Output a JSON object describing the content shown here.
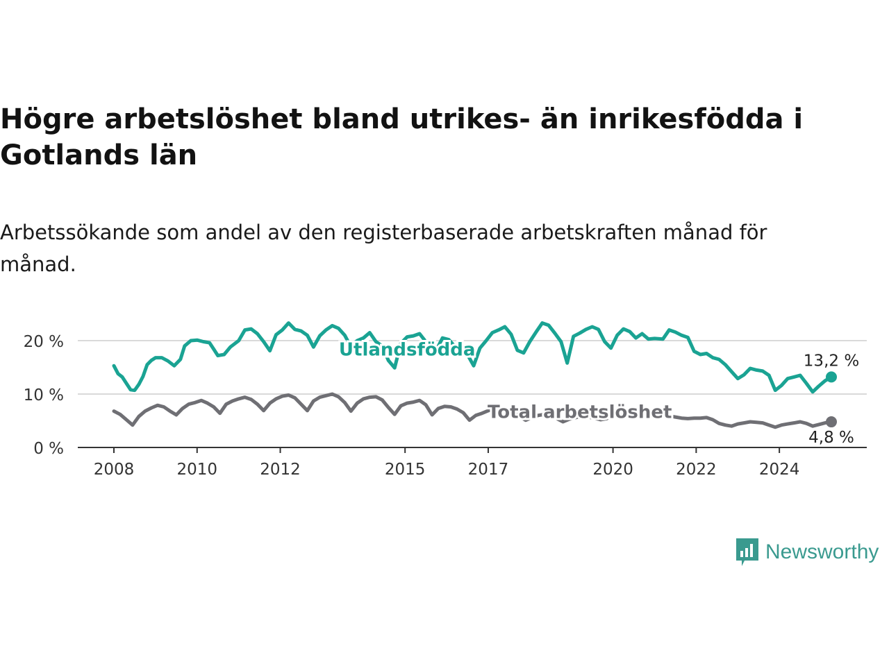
{
  "header": {
    "title": "Högre arbetslöshet bland utrikes- än inrikesfödda i Gotlands län",
    "subtitle": "Arbetssökande som andel av den registerbaserade arbetskraften månad för månad."
  },
  "branding": {
    "logo_text": "Newsworthy",
    "logo_color": "#3a9a8f"
  },
  "chart_data": {
    "type": "line",
    "title": "Högre arbetslöshet bland utrikes- än inrikesfödda i Gotlands län",
    "subtitle": "Arbetssökande som andel av den registerbaserade arbetskraften månad för månad.",
    "xlabel": "",
    "ylabel": "",
    "x_range": [
      2008,
      2025
    ],
    "ylim": [
      0,
      24
    ],
    "y_ticks": [
      0,
      10,
      20
    ],
    "y_tick_labels": [
      "0 %",
      "10 %",
      "20 %"
    ],
    "x_ticks": [
      2008,
      2010,
      2012,
      2015,
      2017,
      2020,
      2022,
      2024
    ],
    "x_tick_labels": [
      "2008",
      "2010",
      "2012",
      "2015",
      "2017",
      "2020",
      "2022",
      "2024"
    ],
    "grid": true,
    "legend": "inline labels",
    "series": [
      {
        "name": "Utlandsfödda",
        "color": "#1aa393",
        "end_label": "13,2 %",
        "points": [
          [
            2008.0,
            15.3
          ],
          [
            2008.1,
            13.8
          ],
          [
            2008.2,
            13.2
          ],
          [
            2008.3,
            12.0
          ],
          [
            2008.4,
            10.8
          ],
          [
            2008.5,
            10.7
          ],
          [
            2008.6,
            11.8
          ],
          [
            2008.7,
            13.3
          ],
          [
            2008.8,
            15.5
          ],
          [
            2008.9,
            16.3
          ],
          [
            2009.0,
            16.8
          ],
          [
            2009.15,
            16.8
          ],
          [
            2009.3,
            16.2
          ],
          [
            2009.45,
            15.3
          ],
          [
            2009.6,
            16.5
          ],
          [
            2009.7,
            19.0
          ],
          [
            2009.85,
            20.0
          ],
          [
            2010.0,
            20.1
          ],
          [
            2010.15,
            19.8
          ],
          [
            2010.3,
            19.6
          ],
          [
            2010.4,
            18.4
          ],
          [
            2010.5,
            17.2
          ],
          [
            2010.65,
            17.4
          ],
          [
            2010.8,
            18.8
          ],
          [
            2011.0,
            20.0
          ],
          [
            2011.15,
            22.0
          ],
          [
            2011.3,
            22.2
          ],
          [
            2011.45,
            21.3
          ],
          [
            2011.6,
            19.8
          ],
          [
            2011.75,
            18.1
          ],
          [
            2011.9,
            21.1
          ],
          [
            2012.05,
            22.0
          ],
          [
            2012.2,
            23.3
          ],
          [
            2012.35,
            22.1
          ],
          [
            2012.5,
            21.8
          ],
          [
            2012.65,
            21.0
          ],
          [
            2012.8,
            18.8
          ],
          [
            2012.95,
            20.9
          ],
          [
            2013.1,
            22.0
          ],
          [
            2013.25,
            22.8
          ],
          [
            2013.4,
            22.3
          ],
          [
            2013.55,
            21.0
          ],
          [
            2013.7,
            18.8
          ],
          [
            2013.85,
            20.0
          ],
          [
            2014.0,
            20.5
          ],
          [
            2014.15,
            21.5
          ],
          [
            2014.3,
            19.8
          ],
          [
            2014.45,
            19.0
          ],
          [
            2014.6,
            16.3
          ],
          [
            2014.75,
            14.9
          ],
          [
            2014.9,
            19.5
          ],
          [
            2015.05,
            20.7
          ],
          [
            2015.2,
            20.9
          ],
          [
            2015.35,
            21.3
          ],
          [
            2015.5,
            19.8
          ],
          [
            2015.6,
            17.5
          ],
          [
            2015.75,
            18.2
          ],
          [
            2015.9,
            20.5
          ],
          [
            2016.05,
            20.2
          ],
          [
            2016.2,
            18.9
          ],
          [
            2016.35,
            18.0
          ],
          [
            2016.5,
            17.4
          ],
          [
            2016.65,
            15.3
          ],
          [
            2016.8,
            18.6
          ],
          [
            2016.95,
            20.0
          ],
          [
            2017.1,
            21.5
          ],
          [
            2017.25,
            22.0
          ],
          [
            2017.4,
            22.6
          ],
          [
            2017.55,
            21.2
          ],
          [
            2017.7,
            18.2
          ],
          [
            2017.85,
            17.7
          ],
          [
            2018.0,
            19.8
          ],
          [
            2018.15,
            21.6
          ],
          [
            2018.3,
            23.3
          ],
          [
            2018.45,
            22.9
          ],
          [
            2018.6,
            21.4
          ],
          [
            2018.75,
            19.8
          ],
          [
            2018.9,
            15.8
          ],
          [
            2019.05,
            20.8
          ],
          [
            2019.2,
            21.4
          ],
          [
            2019.35,
            22.1
          ],
          [
            2019.5,
            22.6
          ],
          [
            2019.65,
            22.1
          ],
          [
            2019.8,
            19.8
          ],
          [
            2019.95,
            18.6
          ],
          [
            2020.1,
            21.0
          ],
          [
            2020.25,
            22.2
          ],
          [
            2020.4,
            21.7
          ],
          [
            2020.55,
            20.5
          ],
          [
            2020.7,
            21.3
          ],
          [
            2020.85,
            20.3
          ],
          [
            2021.0,
            20.4
          ],
          [
            2021.2,
            20.3
          ],
          [
            2021.35,
            22.0
          ],
          [
            2021.5,
            21.6
          ],
          [
            2021.65,
            21.0
          ],
          [
            2021.8,
            20.6
          ],
          [
            2021.95,
            18.0
          ],
          [
            2022.1,
            17.4
          ],
          [
            2022.25,
            17.6
          ],
          [
            2022.4,
            16.8
          ],
          [
            2022.55,
            16.5
          ],
          [
            2022.7,
            15.5
          ],
          [
            2022.85,
            14.2
          ],
          [
            2023.0,
            12.9
          ],
          [
            2023.15,
            13.6
          ],
          [
            2023.3,
            14.8
          ],
          [
            2023.45,
            14.5
          ],
          [
            2023.6,
            14.3
          ],
          [
            2023.75,
            13.5
          ],
          [
            2023.9,
            10.7
          ],
          [
            2024.05,
            11.6
          ],
          [
            2024.2,
            12.9
          ],
          [
            2024.35,
            13.2
          ],
          [
            2024.5,
            13.5
          ],
          [
            2024.65,
            12.0
          ],
          [
            2024.8,
            10.4
          ],
          [
            2024.95,
            11.5
          ],
          [
            2025.1,
            12.5
          ],
          [
            2025.25,
            13.2
          ]
        ]
      },
      {
        "name": "Total arbetslöshet",
        "color": "#6f6f74",
        "end_label": "4,8 %",
        "points": [
          [
            2008.0,
            6.8
          ],
          [
            2008.15,
            6.2
          ],
          [
            2008.3,
            5.2
          ],
          [
            2008.45,
            4.2
          ],
          [
            2008.6,
            5.8
          ],
          [
            2008.75,
            6.8
          ],
          [
            2008.9,
            7.4
          ],
          [
            2009.05,
            7.9
          ],
          [
            2009.2,
            7.6
          ],
          [
            2009.35,
            6.8
          ],
          [
            2009.5,
            6.1
          ],
          [
            2009.65,
            7.3
          ],
          [
            2009.8,
            8.1
          ],
          [
            2009.95,
            8.4
          ],
          [
            2010.1,
            8.8
          ],
          [
            2010.25,
            8.3
          ],
          [
            2010.4,
            7.6
          ],
          [
            2010.55,
            6.4
          ],
          [
            2010.7,
            8.1
          ],
          [
            2010.85,
            8.7
          ],
          [
            2011.0,
            9.1
          ],
          [
            2011.15,
            9.4
          ],
          [
            2011.3,
            9.0
          ],
          [
            2011.45,
            8.1
          ],
          [
            2011.6,
            6.9
          ],
          [
            2011.75,
            8.3
          ],
          [
            2011.9,
            9.1
          ],
          [
            2012.05,
            9.6
          ],
          [
            2012.2,
            9.8
          ],
          [
            2012.35,
            9.3
          ],
          [
            2012.5,
            8.1
          ],
          [
            2012.65,
            6.9
          ],
          [
            2012.8,
            8.7
          ],
          [
            2012.95,
            9.4
          ],
          [
            2013.1,
            9.7
          ],
          [
            2013.25,
            10.0
          ],
          [
            2013.4,
            9.5
          ],
          [
            2013.55,
            8.4
          ],
          [
            2013.7,
            6.8
          ],
          [
            2013.85,
            8.3
          ],
          [
            2014.0,
            9.1
          ],
          [
            2014.15,
            9.4
          ],
          [
            2014.3,
            9.5
          ],
          [
            2014.45,
            8.9
          ],
          [
            2014.6,
            7.5
          ],
          [
            2014.75,
            6.2
          ],
          [
            2014.9,
            7.8
          ],
          [
            2015.05,
            8.3
          ],
          [
            2015.2,
            8.5
          ],
          [
            2015.35,
            8.8
          ],
          [
            2015.5,
            8.0
          ],
          [
            2015.65,
            6.1
          ],
          [
            2015.8,
            7.3
          ],
          [
            2015.95,
            7.7
          ],
          [
            2016.1,
            7.6
          ],
          [
            2016.25,
            7.2
          ],
          [
            2016.4,
            6.5
          ],
          [
            2016.55,
            5.1
          ],
          [
            2016.7,
            6.0
          ],
          [
            2016.85,
            6.4
          ],
          [
            2017.0,
            6.9
          ],
          [
            2017.15,
            7.2
          ],
          [
            2017.3,
            7.3
          ],
          [
            2017.45,
            6.8
          ],
          [
            2017.6,
            6.5
          ],
          [
            2017.75,
            5.8
          ],
          [
            2017.9,
            5.1
          ],
          [
            2018.05,
            5.6
          ],
          [
            2018.2,
            6.0
          ],
          [
            2018.35,
            6.2
          ],
          [
            2018.5,
            5.8
          ],
          [
            2018.65,
            5.4
          ],
          [
            2018.8,
            4.8
          ],
          [
            2018.95,
            5.3
          ],
          [
            2019.1,
            5.6
          ],
          [
            2019.25,
            5.9
          ],
          [
            2019.4,
            5.7
          ],
          [
            2019.55,
            5.5
          ],
          [
            2019.7,
            5.2
          ],
          [
            2019.85,
            5.4
          ],
          [
            2020.0,
            6.0
          ],
          [
            2020.15,
            6.4
          ],
          [
            2020.3,
            6.6
          ],
          [
            2020.45,
            6.3
          ],
          [
            2020.6,
            6.1
          ],
          [
            2020.75,
            5.9
          ],
          [
            2020.9,
            6.0
          ],
          [
            2021.05,
            6.3
          ],
          [
            2021.2,
            6.1
          ],
          [
            2021.35,
            5.9
          ],
          [
            2021.5,
            5.7
          ],
          [
            2021.65,
            5.5
          ],
          [
            2021.8,
            5.4
          ],
          [
            2021.95,
            5.5
          ],
          [
            2022.1,
            5.5
          ],
          [
            2022.25,
            5.6
          ],
          [
            2022.4,
            5.2
          ],
          [
            2022.55,
            4.5
          ],
          [
            2022.7,
            4.2
          ],
          [
            2022.85,
            4.0
          ],
          [
            2023.0,
            4.4
          ],
          [
            2023.15,
            4.6
          ],
          [
            2023.3,
            4.8
          ],
          [
            2023.45,
            4.7
          ],
          [
            2023.6,
            4.6
          ],
          [
            2023.75,
            4.2
          ],
          [
            2023.9,
            3.8
          ],
          [
            2024.05,
            4.2
          ],
          [
            2024.2,
            4.4
          ],
          [
            2024.35,
            4.6
          ],
          [
            2024.5,
            4.8
          ],
          [
            2024.65,
            4.5
          ],
          [
            2024.8,
            4.0
          ],
          [
            2024.95,
            4.3
          ],
          [
            2025.1,
            4.6
          ],
          [
            2025.25,
            4.8
          ]
        ]
      }
    ]
  }
}
